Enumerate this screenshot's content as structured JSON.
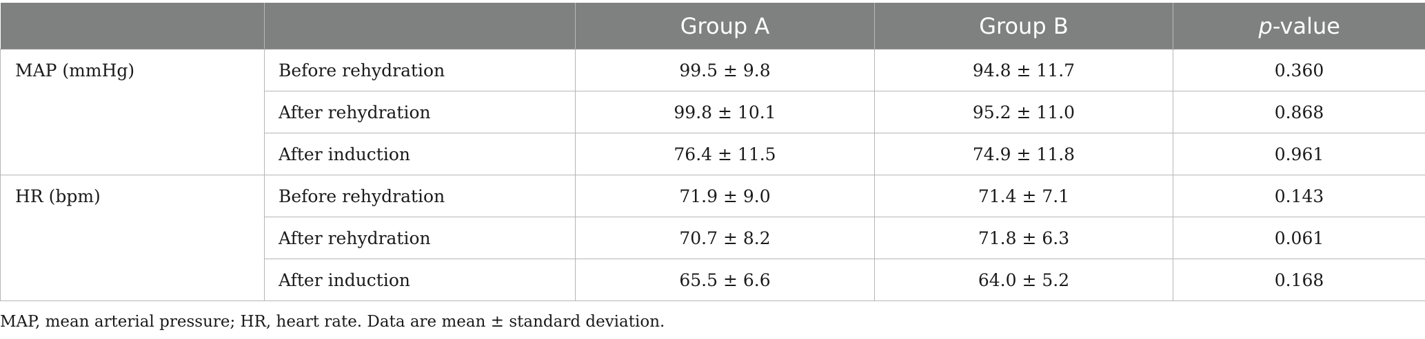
{
  "table": {
    "headers": [
      "",
      "",
      "Group A",
      "Group B",
      "p",
      "-value"
    ],
    "groups": [
      {
        "label": "MAP (mmHg)",
        "rows": [
          {
            "condition": "Before rehydration",
            "group_a": "99.5 ± 9.8",
            "group_b": "94.8 ± 11.7",
            "p_value": "0.360"
          },
          {
            "condition": "After rehydration",
            "group_a": "99.8 ± 10.1",
            "group_b": "95.2 ± 11.0",
            "p_value": "0.868"
          },
          {
            "condition": "After induction",
            "group_a": "76.4 ± 11.5",
            "group_b": "74.9 ± 11.8",
            "p_value": "0.961"
          }
        ]
      },
      {
        "label": "HR (bpm)",
        "rows": [
          {
            "condition": "Before rehydration",
            "group_a": "71.9 ± 9.0",
            "group_b": "71.4 ± 7.1",
            "p_value": "0.143"
          },
          {
            "condition": "After rehydration",
            "group_a": "70.7 ± 8.2",
            "group_b": "71.8 ± 6.3",
            "p_value": "0.061"
          },
          {
            "condition": "After induction",
            "group_a": "65.5 ± 6.6",
            "group_b": "64.0 ± 5.2",
            "p_value": "0.168"
          }
        ]
      }
    ]
  },
  "footnote": "MAP, mean arterial pressure; HR, heart rate. Data are mean ± standard deviation.",
  "colors": {
    "header_bg": "#7f8180",
    "header_text": "#ffffff",
    "grid_line": "#b5b5b5"
  }
}
